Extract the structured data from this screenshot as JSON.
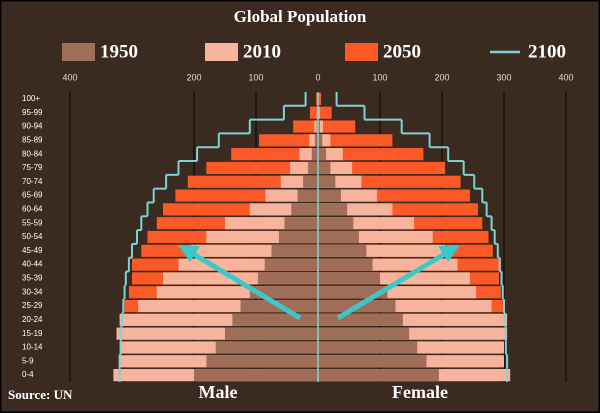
{
  "chart_data": {
    "type": "population_pyramid",
    "title": "Global Population",
    "categories": [
      "0-4",
      "5-9",
      "10-14",
      "15-19",
      "20-24",
      "25-29",
      "30-34",
      "35-39",
      "40-44",
      "45-49",
      "50-54",
      "55-59",
      "60-64",
      "65-69",
      "70-74",
      "75-79",
      "80-84",
      "85-89",
      "90-94",
      "95-99",
      "100+"
    ],
    "series": [
      {
        "name": "1950",
        "color": "#a06e58",
        "kind": "bar",
        "male": [
          200,
          180,
          165,
          150,
          138,
          125,
          110,
          97,
          86,
          75,
          63,
          54,
          43,
          33,
          24,
          16,
          10,
          5,
          2,
          1,
          0
        ],
        "female": [
          195,
          175,
          160,
          147,
          137,
          125,
          112,
          100,
          88,
          78,
          66,
          57,
          47,
          37,
          28,
          20,
          13,
          7,
          3,
          1,
          0
        ]
      },
      {
        "name": "2010",
        "color": "#f7b39b",
        "kind": "bar",
        "male": [
          330,
          320,
          320,
          325,
          320,
          290,
          260,
          250,
          225,
          205,
          180,
          150,
          110,
          85,
          60,
          45,
          30,
          14,
          6,
          2,
          0
        ],
        "female": [
          310,
          300,
          300,
          305,
          305,
          280,
          255,
          245,
          225,
          205,
          185,
          155,
          120,
          95,
          70,
          55,
          40,
          20,
          8,
          3,
          1
        ]
      },
      {
        "name": "2050",
        "color": "#fb5a28",
        "kind": "bar",
        "male": [
          310,
          310,
          310,
          312,
          315,
          312,
          305,
          300,
          300,
          285,
          275,
          260,
          250,
          230,
          210,
          180,
          140,
          95,
          40,
          13,
          3
        ],
        "female": [
          295,
          295,
          295,
          300,
          302,
          300,
          295,
          292,
          295,
          282,
          275,
          265,
          258,
          245,
          230,
          205,
          170,
          120,
          60,
          22,
          5
        ]
      },
      {
        "name": "2100",
        "color": "#7fd3d6",
        "kind": "line",
        "male": [
          320,
          320,
          318,
          318,
          316,
          314,
          312,
          310,
          305,
          300,
          292,
          285,
          275,
          265,
          245,
          225,
          195,
          160,
          110,
          55,
          20
        ],
        "female": [
          305,
          305,
          303,
          303,
          302,
          300,
          298,
          296,
          293,
          290,
          285,
          280,
          272,
          265,
          252,
          235,
          210,
          180,
          135,
          75,
          30
        ]
      }
    ],
    "xlim": [
      -400,
      400
    ],
    "xticks": [
      {
        "value": -400,
        "label": "400"
      },
      {
        "value": -200,
        "label": "200"
      },
      {
        "value": -100,
        "label": "100"
      },
      0,
      100,
      200,
      300,
      400
    ],
    "grid": true,
    "left_label": "Male",
    "right_label": "Female",
    "source": "Source: UN"
  }
}
